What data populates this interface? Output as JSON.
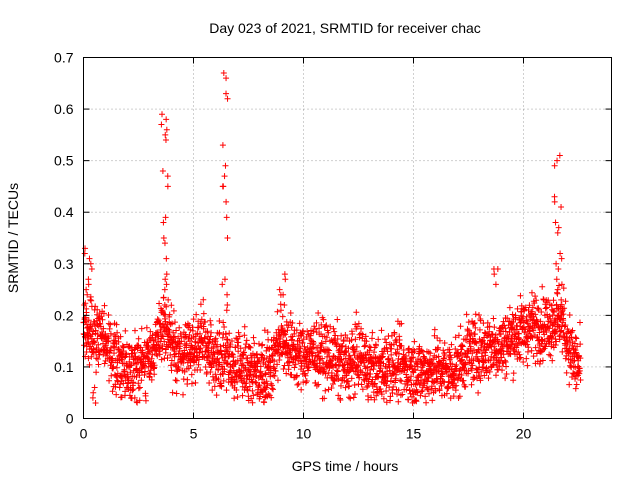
{
  "chart_data": {
    "type": "scatter",
    "title": "Day 023 of 2021, SRMTID for receiver chac",
    "xlabel": "GPS time / hours",
    "ylabel": "SRMTID / TECUs",
    "xlim": [
      0,
      24
    ],
    "ylim": [
      0,
      0.7
    ],
    "xticks": [
      0,
      5,
      10,
      15,
      20
    ],
    "xtick_labels": [
      "0",
      "5",
      "10",
      "15",
      "20"
    ],
    "yticks": [
      0,
      0.1,
      0.2,
      0.3,
      0.4,
      0.5,
      0.6,
      0.7
    ],
    "ytick_labels": [
      "0",
      "0.1",
      "0.2",
      "0.3",
      "0.4",
      "0.5",
      "0.6",
      "0.7"
    ],
    "grid": true,
    "marker": "+",
    "marker_color": "#ff0000",
    "series": [
      {
        "name": "SRMTID",
        "baseline": {
          "x": [
            0,
            0.1,
            0.5,
            1,
            1.5,
            2,
            2.5,
            3,
            3.5,
            3.8,
            4,
            4.5,
            5,
            5.5,
            6,
            6.4,
            7,
            7.5,
            8,
            8.5,
            9,
            9.5,
            10,
            10.5,
            11,
            11.5,
            12,
            12.5,
            13,
            13.5,
            14,
            14.5,
            15,
            15.5,
            16,
            16.5,
            17,
            17.5,
            18,
            18.5,
            19,
            19.5,
            20,
            20.5,
            21,
            21.5,
            21.7,
            22,
            22.3,
            22.6
          ],
          "y": [
            0.2,
            0.17,
            0.16,
            0.15,
            0.11,
            0.1,
            0.1,
            0.12,
            0.16,
            0.17,
            0.14,
            0.12,
            0.14,
            0.15,
            0.11,
            0.12,
            0.1,
            0.1,
            0.09,
            0.1,
            0.16,
            0.13,
            0.12,
            0.13,
            0.12,
            0.11,
            0.1,
            0.12,
            0.1,
            0.09,
            0.11,
            0.1,
            0.09,
            0.09,
            0.1,
            0.09,
            0.1,
            0.13,
            0.13,
            0.14,
            0.14,
            0.16,
            0.17,
            0.18,
            0.18,
            0.19,
            0.2,
            0.15,
            0.11,
            0.1
          ]
        },
        "spread": 0.045,
        "sample_interval_hours": 0.0083,
        "bursts": [
          {
            "x_start": 3.5,
            "x_end": 3.85,
            "y_values": [
              0.59,
              0.58,
              0.57,
              0.56,
              0.55,
              0.54,
              0.48,
              0.47,
              0.45,
              0.39,
              0.38,
              0.35,
              0.34,
              0.31,
              0.28,
              0.27,
              0.26,
              0.25,
              0.23,
              0.22,
              0.21
            ]
          },
          {
            "x_start": 6.3,
            "x_end": 6.55,
            "y_values": [
              0.67,
              0.66,
              0.63,
              0.62,
              0.53,
              0.49,
              0.47,
              0.45,
              0.45,
              0.42,
              0.39,
              0.35,
              0.27,
              0.26,
              0.24,
              0.22,
              0.21
            ]
          },
          {
            "x_start": 21.4,
            "x_end": 21.75,
            "y_values": [
              0.51,
              0.5,
              0.49,
              0.43,
              0.42,
              0.41,
              0.38,
              0.37,
              0.36,
              0.32,
              0.31,
              0.3,
              0.29,
              0.27,
              0.26,
              0.25
            ]
          },
          {
            "x_start": 0,
            "x_end": 0.4,
            "y_values": [
              0.33,
              0.32,
              0.31,
              0.3,
              0.29,
              0.27,
              0.26,
              0.25,
              0.24,
              0.23
            ]
          },
          {
            "x_start": 8.9,
            "x_end": 9.3,
            "y_values": [
              0.28,
              0.27,
              0.25,
              0.24,
              0.22,
              0.21
            ]
          },
          {
            "x_start": 18.6,
            "x_end": 18.85,
            "y_values": [
              0.29,
              0.29,
              0.28,
              0.26
            ]
          },
          {
            "x_start": 0.4,
            "x_end": 0.6,
            "y_values": [
              0.04,
              0.03,
              0.05,
              0.06
            ]
          }
        ]
      }
    ]
  }
}
